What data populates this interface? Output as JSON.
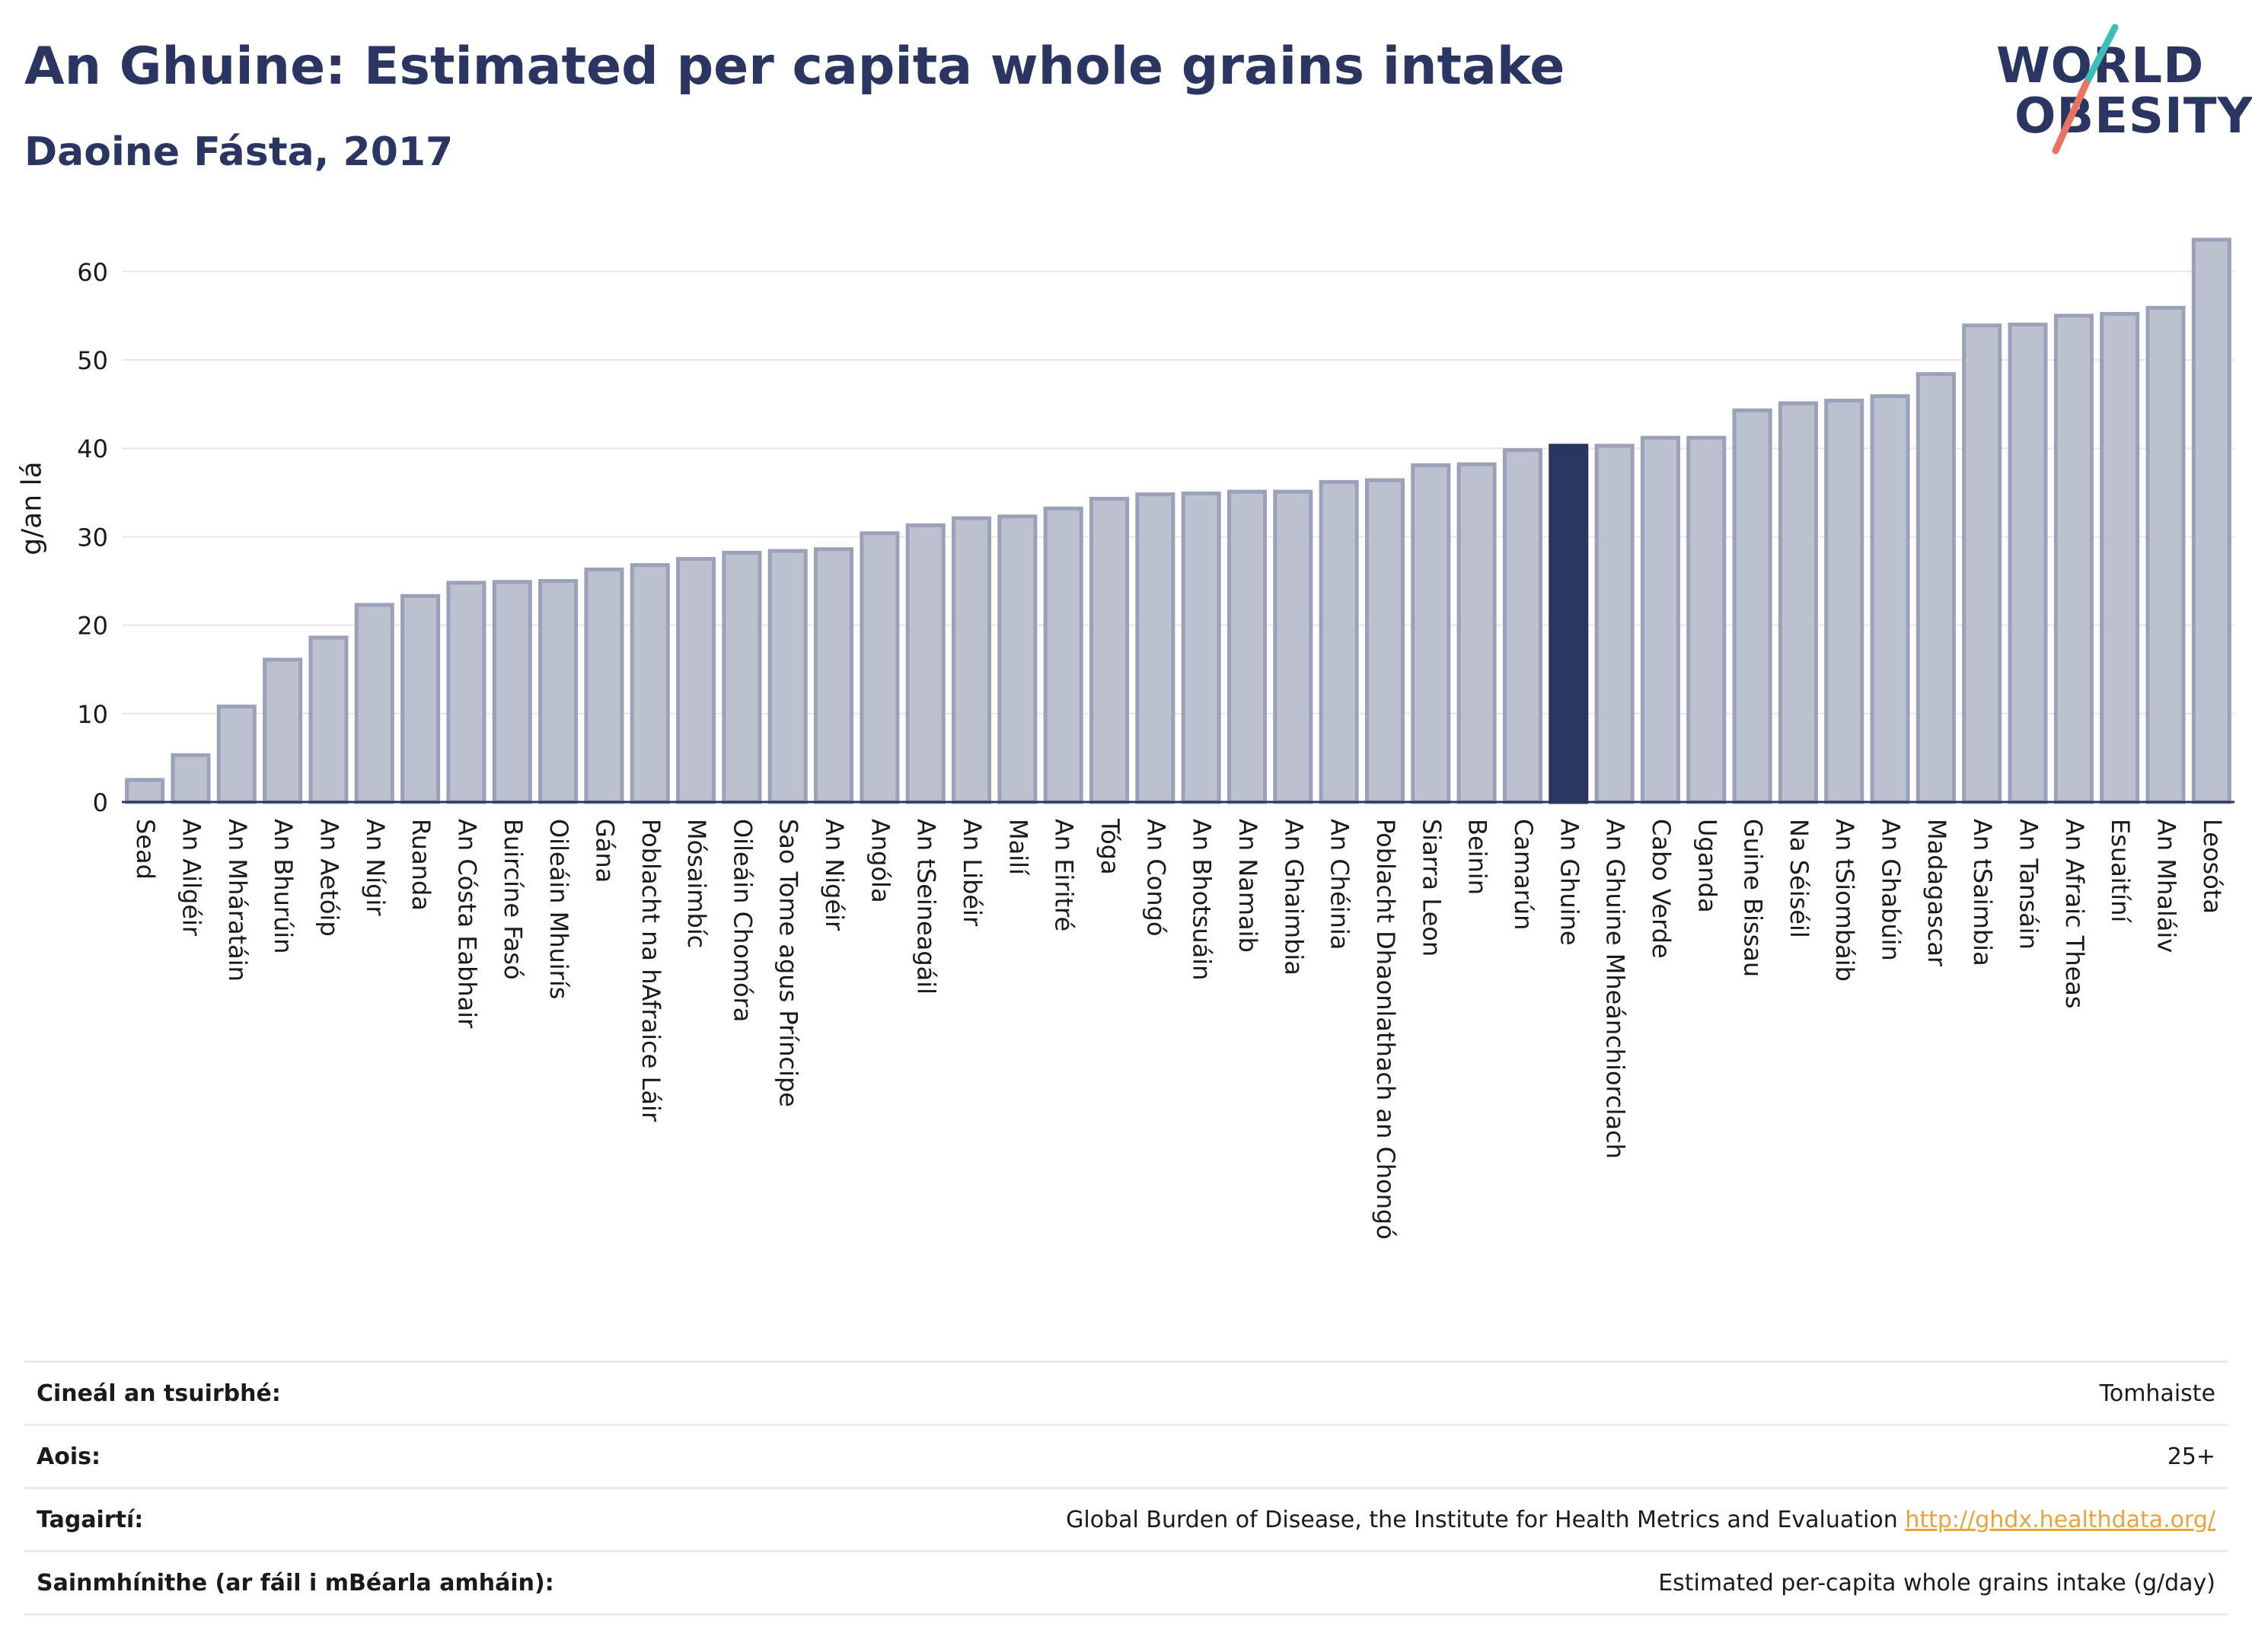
{
  "header": {
    "title": "An Ghuine: Estimated per capita whole grains intake",
    "subtitle": "Daoine Fásta, 2017"
  },
  "logo": {
    "line1": "WORLD",
    "line2": "OBESITY",
    "colors": {
      "text": "#2a3561",
      "slash_top": "#3dbdb8",
      "slash_bottom": "#e8735f"
    }
  },
  "colors": {
    "bar_default": "#bcc1d0",
    "bar_default_stroke": "#9aa1b8",
    "bar_highlight": "#2a3561",
    "grid": "#e4e6ec",
    "axis": "#2a3561"
  },
  "chart_data": {
    "type": "bar",
    "title": "An Ghuine: Estimated per capita whole grains intake",
    "subtitle": "Daoine Fásta, 2017",
    "ylabel": "g/an lá",
    "xlabel": "",
    "ylim": [
      0,
      65
    ],
    "yticks": [
      0,
      10,
      20,
      30,
      40,
      50,
      60
    ],
    "grid": true,
    "highlight": "An Ghuine",
    "categories": [
      "Sead",
      "An Ailgéir",
      "An Mháratáin",
      "An Bhurúin",
      "An Aetóip",
      "An Nígir",
      "Ruanda",
      "An Cósta Eabhair",
      "Buircíne Fasó",
      "Oileáin Mhuirís",
      "Gána",
      "Poblacht na hAfraice Láir",
      "Mósaimbíc",
      "Oileáin Chomóra",
      "Sao Tome agus Príncipe",
      "An Nigéir",
      "Angóla",
      "An tSeineagáil",
      "An Libéir",
      "Mailí",
      "An Eiritré",
      "Tóga",
      "An Congó",
      "An Bhotsuáin",
      "An Namaib",
      "An Ghaimbia",
      "An Chéinia",
      "Poblacht Dhaonlathach an Chongó",
      "Siarra Leon",
      "Beinin",
      "Camarún",
      "An Ghuine",
      "An Ghuine Mheánchiorclach",
      "Cabo Verde",
      "Uganda",
      "Guine Bissau",
      "Na Séiséil",
      "An tSiombáib",
      "An Ghabúin",
      "Madagascar",
      "An tSaimbia",
      "An Tansáin",
      "An Afraic Theas",
      "Esuaitíní",
      "An Mhaláiv",
      "Leosóta"
    ],
    "values": [
      2.5,
      5.3,
      10.8,
      16.1,
      18.6,
      22.3,
      23.3,
      24.8,
      24.9,
      25.0,
      26.3,
      26.8,
      27.5,
      28.2,
      28.4,
      28.6,
      30.4,
      31.3,
      32.1,
      32.3,
      33.2,
      34.3,
      34.8,
      34.9,
      35.1,
      35.1,
      36.2,
      36.4,
      38.1,
      38.2,
      39.8,
      40.3,
      40.3,
      41.2,
      41.2,
      44.3,
      45.1,
      45.4,
      45.9,
      48.4,
      53.9,
      54.0,
      55.0,
      55.2,
      55.9,
      63.6
    ]
  },
  "info_table": {
    "rows": [
      {
        "key": "Cineál an tsuirbhé:",
        "value": "Tomhaiste",
        "link": ""
      },
      {
        "key": "Aois:",
        "value": "25+",
        "link": ""
      },
      {
        "key": "Tagairtí:",
        "value": "Global Burden of Disease, the Institute for Health Metrics and Evaluation",
        "link": "http://ghdx.healthdata.org/"
      },
      {
        "key": "Sainmhínithe (ar fáil i mBéarla amháin):",
        "value": "Estimated per-capita whole grains intake (g/day)",
        "link": ""
      }
    ]
  }
}
